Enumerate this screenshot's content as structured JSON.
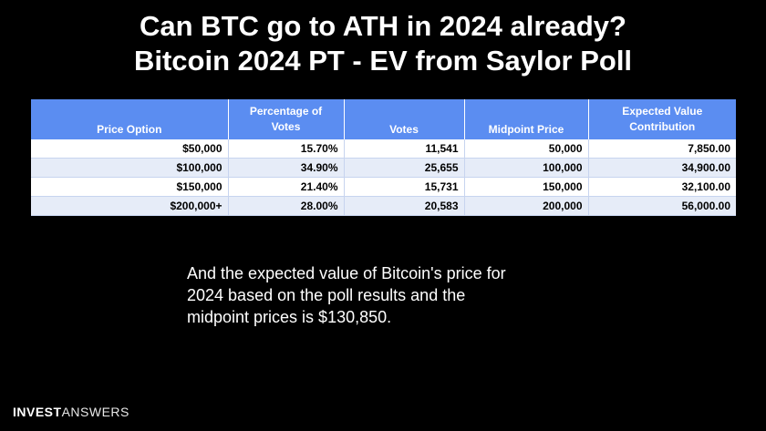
{
  "slide": {
    "title_line1": "Can BTC go to ATH in 2024 already?",
    "title_line2": "Bitcoin 2024 PT - EV from Saylor Poll"
  },
  "table": {
    "headers": {
      "price_option": "Price Option",
      "percentage_line1": "Percentage of",
      "percentage_line2": "Votes",
      "votes": "Votes",
      "midpoint": "Midpoint Price",
      "ev_line1": "Expected Value",
      "ev_line2": "Contribution"
    },
    "rows": [
      {
        "price_option": "$50,000",
        "percentage": "15.70%",
        "votes": "11,541",
        "midpoint": "50,000",
        "ev": "7,850.00"
      },
      {
        "price_option": "$100,000",
        "percentage": "34.90%",
        "votes": "25,655",
        "midpoint": "100,000",
        "ev": "34,900.00"
      },
      {
        "price_option": "$150,000",
        "percentage": "21.40%",
        "votes": "15,731",
        "midpoint": "150,000",
        "ev": "32,100.00"
      },
      {
        "price_option": "$200,000+",
        "percentage": "28.00%",
        "votes": "20,583",
        "midpoint": "200,000",
        "ev": "56,000.00"
      }
    ]
  },
  "summary": {
    "line1": "And the expected value of Bitcoin's price for",
    "line2": "2024 based on the poll results and the",
    "line3": "midpoint prices is $130,850."
  },
  "brand": {
    "part1": "INVEST",
    "part2": "ANSWERS"
  },
  "colors": {
    "background": "#000000",
    "header_blue": "#5b8df1",
    "row_alt": "#e6ecf8"
  }
}
